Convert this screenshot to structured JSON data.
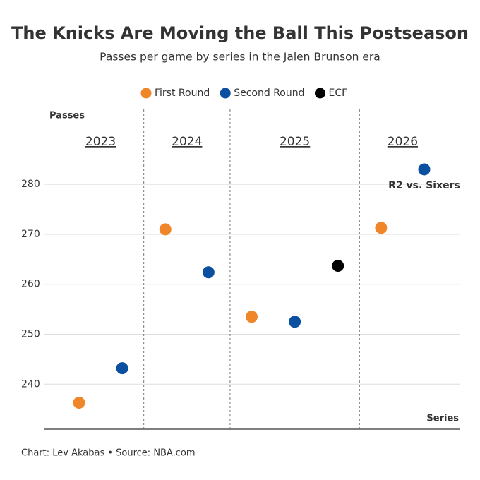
{
  "chart_data": {
    "type": "scatter",
    "title": "The Knicks Are Moving the Ball This Postseason",
    "subtitle": "Passes per game by series in the Jalen Brunson era",
    "y_label": "Passes",
    "x_label": "Series",
    "categories": [
      "2023",
      "2023",
      "2024",
      "2024",
      "2025",
      "2025",
      "2025",
      "2026",
      "2026"
    ],
    "series": [
      {
        "name": "First Round",
        "color": "#f0862a",
        "values": [
          236.3,
          null,
          271.0,
          null,
          253.5,
          null,
          null,
          271.3,
          null
        ]
      },
      {
        "name": "Second Round",
        "color": "#0b4fa0",
        "values": [
          null,
          243.2,
          null,
          262.4,
          null,
          252.5,
          null,
          null,
          283.0
        ]
      },
      {
        "name": "ECF",
        "color": "#000000",
        "values": [
          null,
          null,
          null,
          null,
          null,
          null,
          263.7,
          null,
          null
        ]
      }
    ],
    "annotation": "R2 vs. Sixers",
    "ylim": [
      231,
      295
    ],
    "yticks": [
      240,
      250,
      260,
      270,
      280
    ],
    "grid": true,
    "source": "Chart: Lev Akabas • Source: NBA.com"
  }
}
